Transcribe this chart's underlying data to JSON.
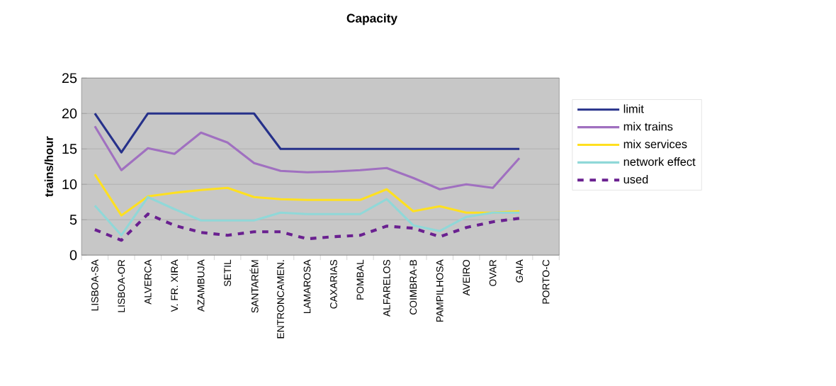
{
  "chart_data": {
    "type": "line",
    "title": "Capacity",
    "ylabel": "trains/hour",
    "categories": [
      "LISBOA-SA",
      "LISBOA-OR",
      "ALVERCA",
      "V. FR. XIRA",
      "AZAMBUJA",
      "SETIL",
      "SANTARÉM",
      "ENTRONCAMEN.",
      "LAMAROSA",
      "CAXARIAS",
      "POMBAL",
      "ALFARELOS",
      "COIMBRA-B",
      "PAMPILHOSA",
      "AVEIRO",
      "OVAR",
      "GAIA",
      "PORTO-C"
    ],
    "series": [
      {
        "name": "limit",
        "color": "#26318a",
        "values": [
          20,
          14.5,
          20,
          20,
          20,
          20,
          20,
          15,
          15,
          15,
          15,
          15,
          15,
          15,
          15,
          15,
          15,
          null
        ]
      },
      {
        "name": "mix trains",
        "color": "#a070c0",
        "values": [
          18.2,
          12,
          15.1,
          14.3,
          17.3,
          15.9,
          13,
          11.9,
          11.7,
          11.8,
          12,
          12.3,
          10.9,
          9.3,
          10,
          9.5,
          13.7,
          null
        ]
      },
      {
        "name": "mix services",
        "color": "#ffe020",
        "values": [
          11.4,
          5.6,
          8.3,
          8.8,
          9.2,
          9.5,
          8.2,
          7.9,
          7.8,
          7.8,
          7.8,
          9.3,
          6.2,
          6.9,
          6,
          6,
          6.2,
          null
        ]
      },
      {
        "name": "network effect",
        "color": "#90d8d8",
        "values": [
          7,
          2.8,
          8.2,
          6.5,
          4.9,
          4.9,
          4.9,
          6,
          5.8,
          5.8,
          5.8,
          7.9,
          4.2,
          3.4,
          5.4,
          6,
          6,
          null
        ]
      },
      {
        "name": "used",
        "color": "#6a2090",
        "line_style": "dashed",
        "values": [
          3.6,
          2.1,
          5.8,
          4.2,
          3.2,
          2.8,
          3.3,
          3.3,
          2.3,
          2.6,
          2.8,
          4.1,
          3.8,
          2.6,
          3.9,
          4.7,
          5.2,
          null
        ]
      }
    ],
    "ylim": [
      0,
      25
    ],
    "yticks": [
      0,
      5,
      10,
      15,
      20,
      25
    ],
    "grid": "y",
    "legend": "right",
    "line_style": "solid"
  }
}
